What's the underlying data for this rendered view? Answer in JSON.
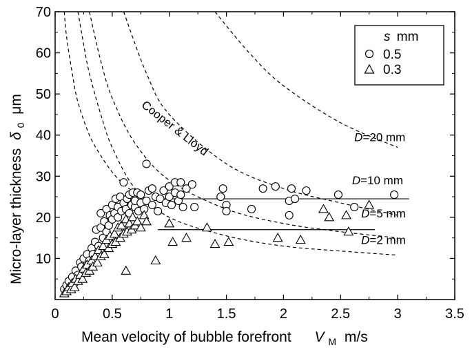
{
  "chart_data": {
    "type": "scatter",
    "xlabel": "Mean velocity of bubble forefront",
    "xlabel_symbol": "V",
    "xlabel_sub": "M",
    "xlabel_unit": "m/s",
    "ylabel": "Micro-layer thickness",
    "ylabel_symbol": "δ",
    "ylabel_sub": "0",
    "ylabel_unit": "μm",
    "xlim": [
      0,
      3.5
    ],
    "ylim": [
      0,
      70
    ],
    "xticks": [
      "0",
      "0.5",
      "1",
      "1.5",
      "2",
      "2.5",
      "3",
      "3.5"
    ],
    "yticks": [
      "10",
      "20",
      "30",
      "40",
      "50",
      "60",
      "70"
    ],
    "legend": {
      "title_symbol": "s",
      "title_unit": "mm",
      "position": "top-right"
    },
    "series": [
      {
        "name": "0.5",
        "marker": "circle",
        "points": [
          [
            0.08,
            2.5
          ],
          [
            0.1,
            3.5
          ],
          [
            0.12,
            4.5
          ],
          [
            0.13,
            3.0
          ],
          [
            0.15,
            5.5
          ],
          [
            0.17,
            4.0
          ],
          [
            0.18,
            7.0
          ],
          [
            0.2,
            6.0
          ],
          [
            0.22,
            9.0
          ],
          [
            0.23,
            8.0
          ],
          [
            0.25,
            10.0
          ],
          [
            0.27,
            7.5
          ],
          [
            0.28,
            11.0
          ],
          [
            0.3,
            9.5
          ],
          [
            0.32,
            12.5
          ],
          [
            0.33,
            11.0
          ],
          [
            0.35,
            14.0
          ],
          [
            0.36,
            17.0
          ],
          [
            0.38,
            13.0
          ],
          [
            0.4,
            17.5
          ],
          [
            0.4,
            21.0
          ],
          [
            0.42,
            15.0
          ],
          [
            0.43,
            19.0
          ],
          [
            0.45,
            16.5
          ],
          [
            0.45,
            22.0
          ],
          [
            0.47,
            18.0
          ],
          [
            0.48,
            20.5
          ],
          [
            0.5,
            19.5
          ],
          [
            0.5,
            23.0
          ],
          [
            0.52,
            21.0
          ],
          [
            0.53,
            24.5
          ],
          [
            0.55,
            20.0
          ],
          [
            0.55,
            22.5
          ],
          [
            0.57,
            25.0
          ],
          [
            0.58,
            21.5
          ],
          [
            0.6,
            23.5
          ],
          [
            0.6,
            28.5
          ],
          [
            0.62,
            22.0
          ],
          [
            0.63,
            24.5
          ],
          [
            0.65,
            25.5
          ],
          [
            0.65,
            21.0
          ],
          [
            0.67,
            23.0
          ],
          [
            0.68,
            26.0
          ],
          [
            0.7,
            22.5
          ],
          [
            0.7,
            24.0
          ],
          [
            0.72,
            26.0
          ],
          [
            0.73,
            21.5
          ],
          [
            0.75,
            23.5
          ],
          [
            0.75,
            25.5
          ],
          [
            0.78,
            22.0
          ],
          [
            0.8,
            24.0
          ],
          [
            0.8,
            33.0
          ],
          [
            0.82,
            26.5
          ],
          [
            0.85,
            23.0
          ],
          [
            0.85,
            27.0
          ],
          [
            0.88,
            25.0
          ],
          [
            0.9,
            21.5
          ],
          [
            0.92,
            24.5
          ],
          [
            0.95,
            26.5
          ],
          [
            0.97,
            23.5
          ],
          [
            1.0,
            25.0
          ],
          [
            1.0,
            27.5
          ],
          [
            1.02,
            23.0
          ],
          [
            1.05,
            26.0
          ],
          [
            1.05,
            28.5
          ],
          [
            1.08,
            24.0
          ],
          [
            1.1,
            25.5
          ],
          [
            1.1,
            28.5
          ],
          [
            1.12,
            22.5
          ],
          [
            1.15,
            27.0
          ],
          [
            1.2,
            28.0
          ],
          [
            1.22,
            22.5
          ],
          [
            1.45,
            25.0
          ],
          [
            1.47,
            27.0
          ],
          [
            1.5,
            23.0
          ],
          [
            1.5,
            21.5
          ],
          [
            1.72,
            22.0
          ],
          [
            1.82,
            27.0
          ],
          [
            1.93,
            27.5
          ],
          [
            2.05,
            24.0
          ],
          [
            2.07,
            27.0
          ],
          [
            2.1,
            24.5
          ],
          [
            2.2,
            26.5
          ],
          [
            2.48,
            25.5
          ],
          [
            2.62,
            22.5
          ],
          [
            2.97,
            25.5
          ],
          [
            2.05,
            20.5
          ]
        ]
      },
      {
        "name": "0.3",
        "marker": "triangle",
        "points": [
          [
            0.08,
            1.5
          ],
          [
            0.1,
            2.0
          ],
          [
            0.12,
            3.0
          ],
          [
            0.14,
            2.5
          ],
          [
            0.15,
            4.0
          ],
          [
            0.17,
            3.0
          ],
          [
            0.18,
            5.0
          ],
          [
            0.2,
            4.5
          ],
          [
            0.22,
            6.0
          ],
          [
            0.24,
            5.0
          ],
          [
            0.25,
            7.5
          ],
          [
            0.27,
            6.5
          ],
          [
            0.28,
            8.5
          ],
          [
            0.3,
            7.0
          ],
          [
            0.32,
            9.5
          ],
          [
            0.33,
            8.0
          ],
          [
            0.35,
            10.5
          ],
          [
            0.37,
            9.0
          ],
          [
            0.38,
            12.0
          ],
          [
            0.4,
            10.5
          ],
          [
            0.42,
            13.0
          ],
          [
            0.43,
            11.0
          ],
          [
            0.45,
            14.5
          ],
          [
            0.47,
            12.5
          ],
          [
            0.48,
            15.5
          ],
          [
            0.5,
            13.5
          ],
          [
            0.52,
            16.0
          ],
          [
            0.53,
            14.0
          ],
          [
            0.55,
            17.5
          ],
          [
            0.57,
            15.0
          ],
          [
            0.58,
            18.0
          ],
          [
            0.6,
            16.0
          ],
          [
            0.62,
            19.5
          ],
          [
            0.63,
            16.5
          ],
          [
            0.65,
            18.5
          ],
          [
            0.67,
            17.0
          ],
          [
            0.68,
            20.0
          ],
          [
            0.7,
            18.0
          ],
          [
            0.72,
            19.0
          ],
          [
            0.75,
            17.5
          ],
          [
            0.78,
            20.5
          ],
          [
            0.8,
            19.0
          ],
          [
            0.62,
            7.0
          ],
          [
            0.88,
            9.5
          ],
          [
            1.0,
            18.5
          ],
          [
            1.03,
            14.0
          ],
          [
            1.15,
            15.0
          ],
          [
            1.33,
            17.5
          ],
          [
            1.4,
            13.5
          ],
          [
            1.52,
            14.0
          ],
          [
            1.95,
            15.0
          ],
          [
            2.15,
            14.5
          ],
          [
            2.35,
            22.0
          ],
          [
            2.4,
            20.0
          ],
          [
            2.55,
            20.5
          ],
          [
            2.57,
            16.5
          ],
          [
            2.75,
            23.0
          ]
        ]
      }
    ],
    "fit_lines": [
      {
        "points": [
          [
            0.95,
            24.5
          ],
          [
            3.1,
            24.5
          ]
        ],
        "style": "solid"
      },
      {
        "points": [
          [
            0.9,
            17.0
          ],
          [
            2.8,
            17.0
          ]
        ],
        "style": "solid"
      }
    ],
    "curves": [
      {
        "label": "Cooper & Lloyd",
        "label_pos": [
          0.75,
          47
        ],
        "rotate": 38,
        "points": [
          [
            0.08,
            70
          ],
          [
            0.1,
            64
          ],
          [
            0.15,
            55
          ],
          [
            0.2,
            48
          ],
          [
            0.3,
            40
          ],
          [
            0.4,
            35
          ],
          [
            0.5,
            31
          ],
          [
            0.6,
            28
          ],
          [
            0.7,
            26
          ],
          [
            0.8,
            24
          ]
        ]
      },
      {
        "label_symbol": "D",
        "label": "=2 mm",
        "label_x": 2.68,
        "label_y": 13.5,
        "points": [
          [
            0.2,
            70
          ],
          [
            0.25,
            62
          ],
          [
            0.3,
            55
          ],
          [
            0.4,
            45
          ],
          [
            0.5,
            37
          ],
          [
            0.7,
            27
          ],
          [
            1.0,
            20
          ],
          [
            1.5,
            15.5
          ],
          [
            2.0,
            13
          ],
          [
            2.5,
            11.8
          ],
          [
            3.0,
            10.8
          ]
        ]
      },
      {
        "label_symbol": "D",
        "label": "=5 mm",
        "label_x": 2.68,
        "label_y": 20,
        "points": [
          [
            0.3,
            70
          ],
          [
            0.4,
            58
          ],
          [
            0.5,
            49
          ],
          [
            0.7,
            38
          ],
          [
            1.0,
            29
          ],
          [
            1.5,
            22
          ],
          [
            2.0,
            18.5
          ],
          [
            2.5,
            16.5
          ],
          [
            3.0,
            15
          ]
        ]
      },
      {
        "label_symbol": "D",
        "label": "=10 mm",
        "label_x": 2.6,
        "label_y": 28,
        "points": [
          [
            0.6,
            70
          ],
          [
            0.8,
            55
          ],
          [
            1.0,
            45
          ],
          [
            1.5,
            33
          ],
          [
            2.0,
            27
          ],
          [
            2.5,
            23.5
          ],
          [
            3.0,
            20.5
          ]
        ]
      },
      {
        "label_symbol": "D",
        "label": "=20 mm",
        "label_x": 2.62,
        "label_y": 38.5,
        "points": [
          [
            1.4,
            70
          ],
          [
            1.7,
            60
          ],
          [
            2.0,
            52
          ],
          [
            2.5,
            43
          ],
          [
            3.0,
            37
          ]
        ]
      }
    ]
  }
}
